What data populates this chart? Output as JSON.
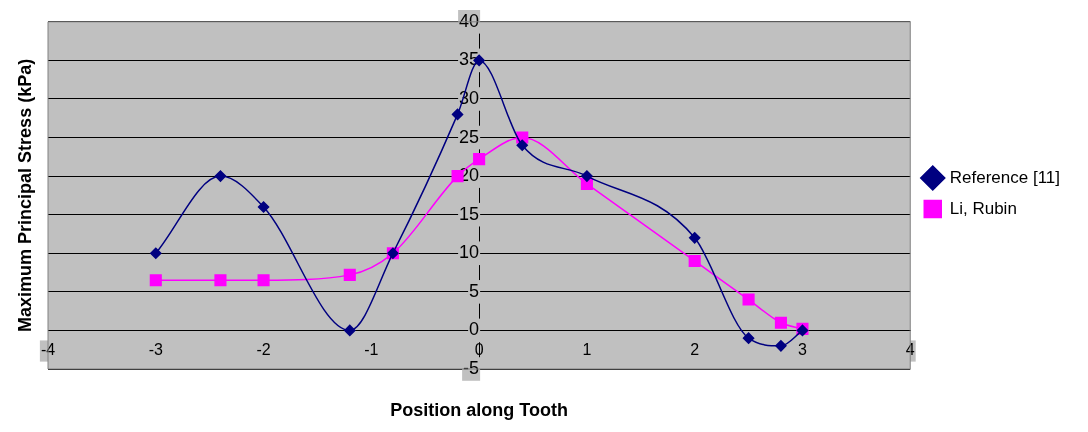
{
  "chart_data": {
    "type": "line",
    "xlabel": "Position along Tooth",
    "ylabel": "Maximum Principal Stress (kPa)",
    "xlim": [
      -4,
      4
    ],
    "xticks": [
      -4,
      -3,
      -2,
      -1,
      0,
      1,
      2,
      3,
      4
    ],
    "ylim": [
      -5,
      40
    ],
    "yticks": [
      -5,
      0,
      5,
      10,
      15,
      20,
      25,
      30,
      35,
      40
    ],
    "grid": "y",
    "legend": "right",
    "series": [
      {
        "name": "Reference [11]",
        "color": "#000080",
        "marker": "diamond",
        "x": [
          -3,
          -2.4,
          -2,
          -1.2,
          -0.8,
          -0.2,
          0,
          0.4,
          1,
          2,
          2.5,
          2.8,
          3
        ],
        "values": [
          10,
          20,
          16,
          0,
          10,
          28,
          35,
          24,
          20,
          12,
          -1,
          -2,
          0
        ]
      },
      {
        "name": "Li, Rubin",
        "color": "#ff00ff",
        "marker": "square",
        "x": [
          -3,
          -2.4,
          -2,
          -1.2,
          -0.8,
          -0.2,
          0,
          0.4,
          1,
          2,
          2.5,
          2.8,
          3
        ],
        "values": [
          6.5,
          6.5,
          6.5,
          7.2,
          10,
          20,
          22.2,
          25,
          19,
          9,
          4,
          1,
          0.2
        ]
      }
    ]
  }
}
